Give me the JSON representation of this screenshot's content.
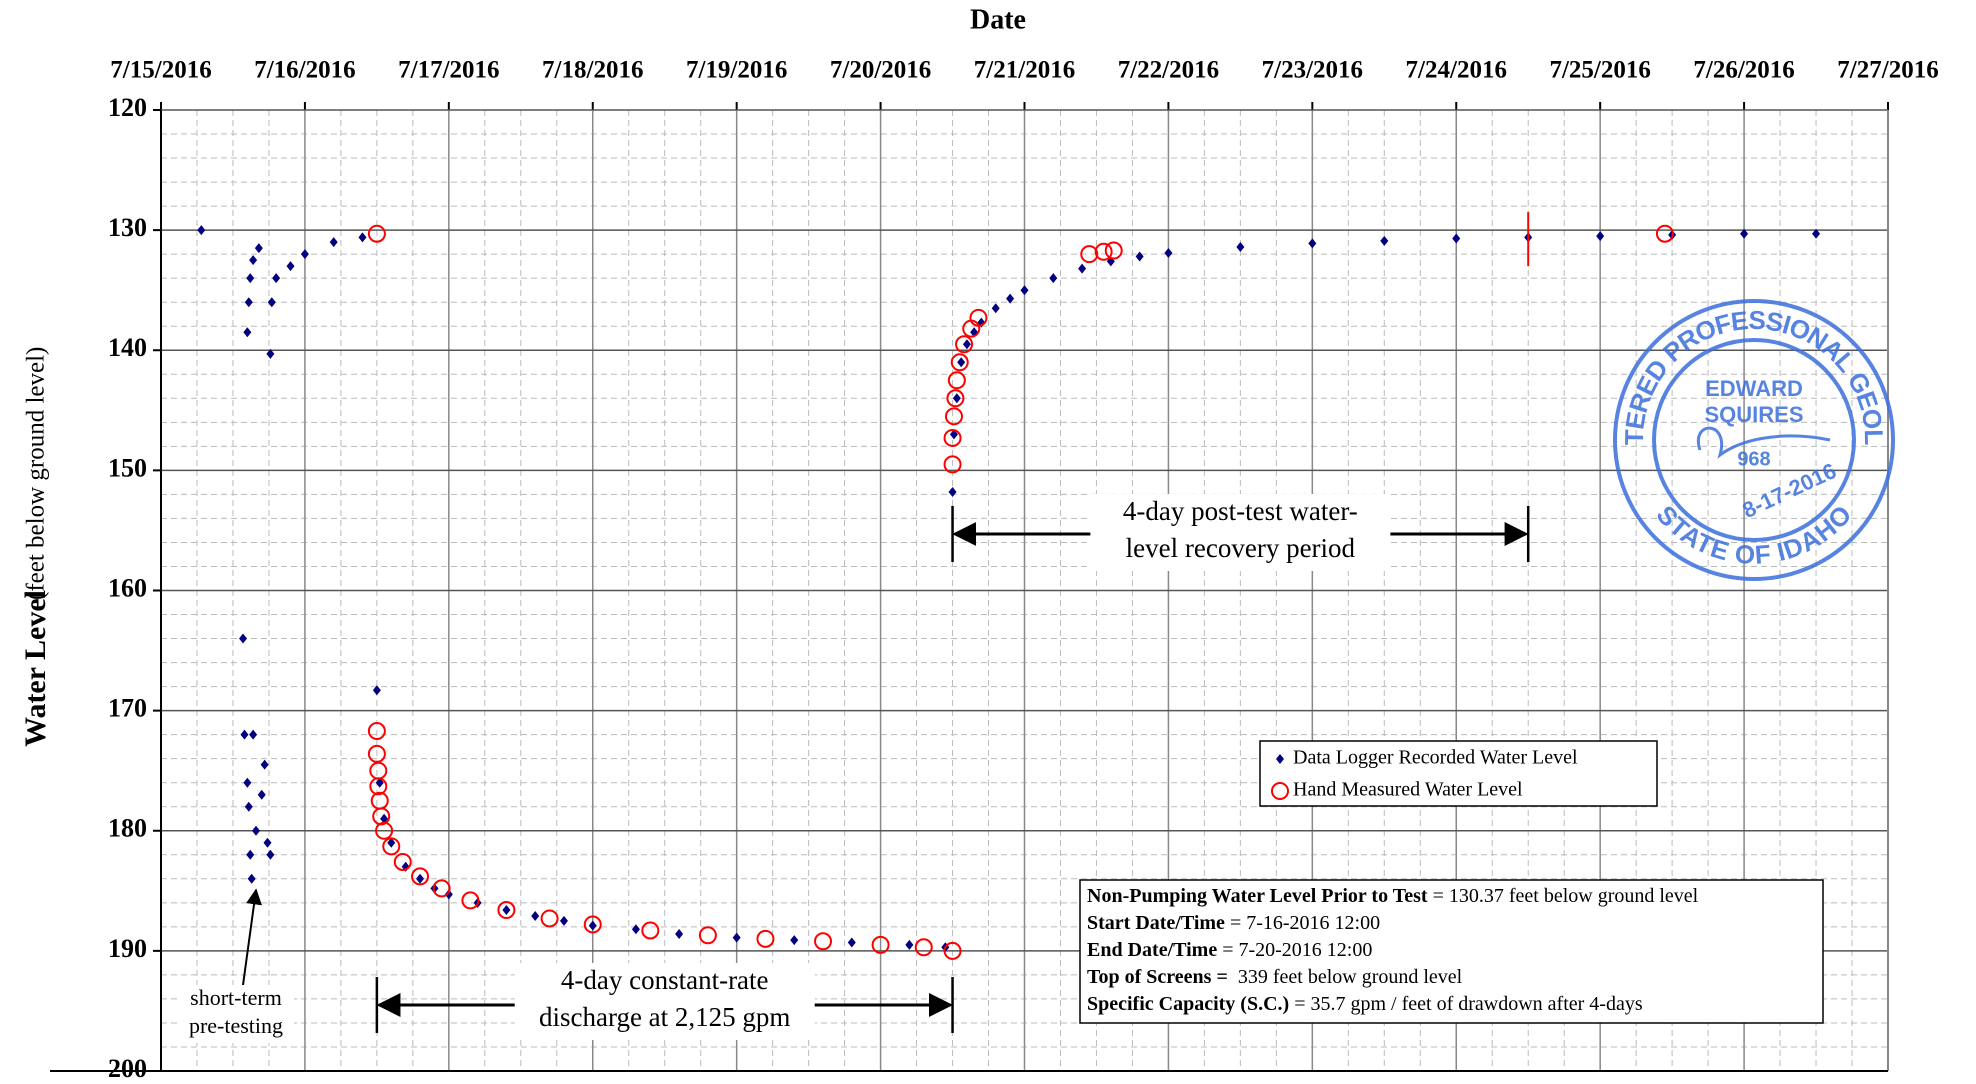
{
  "chart_data": {
    "type": "scatter",
    "title": "Date",
    "y_label": "Water Level",
    "y_label_units": "(feet below ground level)",
    "xlim": [
      0,
      12
    ],
    "xticks": [
      {
        "value": 0,
        "label": "7/15/2016"
      },
      {
        "value": 1,
        "label": "7/16/2016"
      },
      {
        "value": 2,
        "label": "7/17/2016"
      },
      {
        "value": 3,
        "label": "7/18/2016"
      },
      {
        "value": 4,
        "label": "7/19/2016"
      },
      {
        "value": 5,
        "label": "7/20/2016"
      },
      {
        "value": 6,
        "label": "7/21/2016"
      },
      {
        "value": 7,
        "label": "7/22/2016"
      },
      {
        "value": 8,
        "label": "7/23/2016"
      },
      {
        "value": 9,
        "label": "7/24/2016"
      },
      {
        "value": 10,
        "label": "7/25/2016"
      },
      {
        "value": 11,
        "label": "7/26/2016"
      },
      {
        "value": 12,
        "label": "7/27/2016"
      }
    ],
    "ylim": [
      200,
      120
    ],
    "yticks": [
      120,
      130,
      140,
      150,
      160,
      170,
      180,
      190,
      200
    ],
    "y_reversed": true,
    "grid": true,
    "legend": "right",
    "series": [
      {
        "name": "Data Logger Recorded Water Level",
        "color": "#000080",
        "marker": "diamond",
        "x": [
          0.28,
          0.6,
          0.61,
          0.62,
          0.64,
          0.68,
          0.76,
          0.77,
          0.8,
          0.9,
          1.0,
          1.2,
          1.4,
          0.57,
          0.58,
          0.6,
          0.61,
          0.62,
          0.63,
          0.64,
          0.66,
          0.7,
          0.72,
          0.74,
          0.76,
          1.5,
          1.52,
          1.55,
          1.6,
          1.7,
          1.8,
          1.9,
          2.0,
          2.2,
          2.4,
          2.6,
          2.8,
          3.0,
          3.3,
          3.6,
          4.0,
          4.4,
          4.8,
          5.2,
          5.45,
          5.5,
          5.51,
          5.53,
          5.56,
          5.6,
          5.65,
          5.7,
          5.8,
          5.9,
          6.0,
          6.2,
          6.4,
          6.6,
          6.8,
          7.0,
          7.5,
          8.0,
          8.5,
          9.0,
          9.5,
          10.0,
          10.5,
          11.0,
          11.5
        ],
        "values": [
          130,
          138.5,
          136,
          134,
          132.5,
          131.5,
          140.3,
          136,
          134,
          133,
          132,
          131,
          130.6,
          164,
          172,
          176,
          178,
          182,
          184,
          172,
          180,
          177,
          174.5,
          181,
          182,
          168.3,
          176,
          179,
          181,
          183,
          184,
          184.8,
          185.3,
          186,
          186.6,
          187.1,
          187.5,
          187.9,
          188.2,
          188.6,
          188.9,
          189.1,
          189.3,
          189.5,
          189.7,
          151.8,
          147,
          144,
          141,
          139.5,
          138.5,
          137.7,
          136.5,
          135.7,
          135,
          134,
          133.2,
          132.6,
          132.2,
          131.9,
          131.4,
          131.1,
          130.9,
          130.7,
          130.6,
          130.5,
          130.4,
          130.3,
          130.3
        ]
      },
      {
        "name": "Hand Measured Water Level",
        "color": "#ff0000",
        "marker": "circle",
        "x": [
          1.5,
          10.45,
          6.45,
          6.55,
          6.62,
          5.5,
          5.5,
          5.51,
          5.52,
          5.53,
          5.55,
          5.58,
          5.63,
          5.68,
          1.5,
          1.5,
          1.51,
          1.51,
          1.52,
          1.53,
          1.55,
          1.6,
          1.68,
          1.8,
          1.95,
          2.15,
          2.4,
          2.7,
          3.0,
          3.4,
          3.8,
          4.2,
          4.6,
          5.0,
          5.3,
          5.5
        ],
        "values": [
          130.3,
          130.3,
          132,
          131.8,
          131.7,
          149.5,
          147.3,
          145.5,
          144,
          142.5,
          141,
          139.5,
          138.2,
          137.3,
          171.7,
          173.6,
          175,
          176.3,
          177.5,
          178.8,
          180,
          181.3,
          182.6,
          183.8,
          184.8,
          185.8,
          186.6,
          187.3,
          187.8,
          188.3,
          188.7,
          189,
          189.2,
          189.5,
          189.7,
          190
        ]
      }
    ],
    "vlines": [
      {
        "x": 9.5,
        "y": [
          128.5,
          133
        ],
        "color": "#ff0000"
      }
    ],
    "annotations": [
      {
        "lines": [
          "4-day constant-rate",
          "discharge at 2,125 gpm"
        ],
        "x": [
          1.5,
          5.5
        ]
      },
      {
        "lines": [
          "4-day post-test water-",
          "level recovery period"
        ],
        "x": [
          5.5,
          9.5
        ]
      },
      {
        "lines": [
          "short-term",
          "pre-testing"
        ]
      }
    ],
    "info_box": [
      {
        "label": "Non-Pumping Water Level Prior to Test",
        "text": " = 130.37 feet below ground level"
      },
      {
        "label": "Start Date/Time",
        "text": " = 7-16-2016 12:00"
      },
      {
        "label": "End Date/Time",
        "text": " = 7-20-2016 12:00"
      },
      {
        "label": "Top of Screens = ",
        "text": " 339 feet below ground level"
      },
      {
        "label": "Specific Capacity (S.C.)",
        "text": " = 35.7 gpm / feet of drawdown after 4-days"
      }
    ],
    "stamp": {
      "top": "REGISTERED PROFESSIONAL GEOLOGIST",
      "name1": "EDWARD",
      "name2": "SQUIRES",
      "number": "968",
      "date": "8-17-2016",
      "bottom": "STATE OF IDAHO"
    }
  }
}
